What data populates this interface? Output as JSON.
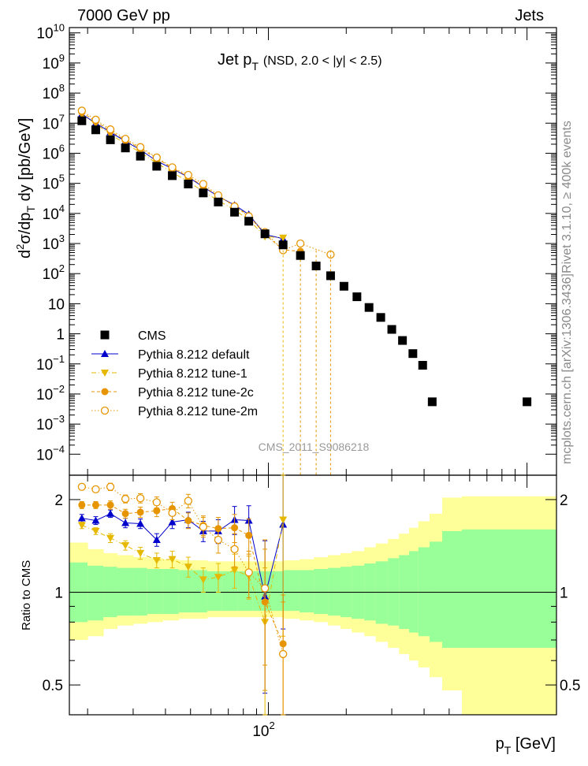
{
  "header": {
    "left": "7000 GeV pp",
    "right": "Jets"
  },
  "side": {
    "rivet": "Rivet 3.1.10, ≥ 400k events",
    "mcplots": "mcplots.cern.ch [arXiv:1306.3436]"
  },
  "chart_data": [
    {
      "type": "scatter",
      "panel": "main",
      "title": "Jet p_T (NSD, 2.0 < |y| < 2.5)",
      "title_parts": {
        "main": "Jet p",
        "sub": "T",
        "tail": "(NSD, 2.0 < |y| < 2.5)"
      },
      "ylabel": "d²σ/dp_T dy [pb/GeV]",
      "xlabel": "p_T [GeV]",
      "watermark": "CMS_2011_S9086218",
      "xscale": "log",
      "yscale": "log",
      "xlim": [
        17,
        1300
      ],
      "ylim": [
        2e-05,
        15000000000
      ],
      "yticks": [
        {
          "v": 10000000000.0,
          "base": "10",
          "exp": "10"
        },
        {
          "v": 1000000000.0,
          "base": "10",
          "exp": "9"
        },
        {
          "v": 100000000.0,
          "base": "10",
          "exp": "8"
        },
        {
          "v": 10000000.0,
          "base": "10",
          "exp": "7"
        },
        {
          "v": 1000000.0,
          "base": "10",
          "exp": "6"
        },
        {
          "v": 100000.0,
          "base": "10",
          "exp": "5"
        },
        {
          "v": 10000.0,
          "base": "10",
          "exp": "4"
        },
        {
          "v": 1000.0,
          "base": "10",
          "exp": "3"
        },
        {
          "v": 100.0,
          "base": "10",
          "exp": "2"
        },
        {
          "v": 10,
          "base": "10",
          "exp": ""
        },
        {
          "v": 1,
          "base": "1",
          "exp": ""
        },
        {
          "v": 0.1,
          "base": "10",
          "exp": "−1"
        },
        {
          "v": 0.01,
          "base": "10",
          "exp": "−2"
        },
        {
          "v": 0.001,
          "base": "10",
          "exp": "−3"
        },
        {
          "v": 0.0001,
          "base": "10",
          "exp": "−4"
        }
      ],
      "legend_position": "bottom-left",
      "series": [
        {
          "name": "CMS",
          "marker": "square",
          "color": "#000000",
          "x": [
            19,
            21.5,
            24.5,
            28,
            32,
            37,
            42.5,
            49,
            56,
            64,
            74,
            84,
            97,
            114,
            133,
            153,
            174,
            196,
            220,
            245,
            272,
            300,
            330,
            362,
            395,
            430,
            468,
            548,
            638,
            737,
            846,
            967
          ],
          "y": [
            12000000,
            6000000,
            2800000,
            1500000,
            800000,
            370000,
            180000,
            95000,
            48000,
            24000,
            11000,
            5500,
            2100,
            900,
            400,
            180,
            85,
            38,
            17,
            7.5,
            3.5,
            1.4,
            0.6,
            0.22,
            0.09,
            0.0055,
            null,
            null,
            null,
            null,
            null,
            null
          ]
        },
        {
          "name": "Pythia 8.212 default",
          "marker": "triangle-up",
          "color": "#0000cc",
          "linestyle": "solid",
          "x": [
            19,
            21.5,
            24.5,
            28,
            32,
            37,
            42.5,
            49,
            56,
            64,
            74,
            84,
            97,
            114
          ],
          "y": [
            20000000,
            10000000,
            5000000,
            2500000,
            1300000,
            550000,
            310000,
            160000,
            76000,
            37000,
            19000,
            9300,
            2000,
            1450
          ]
        },
        {
          "name": "Pythia 8.212 tune-1",
          "marker": "triangle-down",
          "color": "#e6b800",
          "linestyle": "dashdot",
          "x": [
            19,
            21.5,
            24.5,
            28,
            32,
            37,
            42.5,
            49,
            56,
            64,
            74,
            84,
            97,
            114
          ],
          "y": [
            19000000,
            9500000,
            4200000,
            2100000,
            1070000,
            470000,
            230000,
            115000,
            53000,
            27000,
            13000,
            6200,
            1700,
            1550
          ]
        },
        {
          "name": "Pythia 8.212 tune-2c",
          "marker": "circle-filled",
          "color": "#e69500",
          "linestyle": "dashed",
          "x": [
            19,
            21.5,
            24.5,
            28,
            32,
            37,
            42.5,
            49,
            56,
            64,
            74,
            84,
            97,
            114,
            133
          ],
          "y": [
            23000000,
            11500000,
            5400000,
            2700000,
            1450000,
            680000,
            320000,
            170000,
            80000,
            38000,
            18000,
            8400,
            2000,
            620,
            550
          ]
        },
        {
          "name": "Pythia 8.212 tune-2m",
          "marker": "circle-open",
          "color": "#e69500",
          "linestyle": "dotted",
          "x": [
            19,
            21.5,
            24.5,
            28,
            32,
            37,
            42.5,
            49,
            56,
            64,
            74,
            84,
            97,
            114,
            133,
            174
          ],
          "y": [
            26000000,
            13000000,
            6200000,
            3000000,
            1600000,
            720000,
            340000,
            190000,
            95000,
            40000,
            17000,
            8000,
            2400,
            600,
            1000,
            430
          ]
        }
      ]
    },
    {
      "type": "scatter",
      "panel": "ratio",
      "ylabel": "Ratio to CMS",
      "xlabel": "p_T [GeV]",
      "xlabel_parts": {
        "main": "p",
        "sub": "T",
        "tail": " [GeV]"
      },
      "xscale": "log",
      "yscale": "log",
      "xlim": [
        17,
        1300
      ],
      "ylim": [
        0.4,
        2.4
      ],
      "yticks": [
        {
          "v": 0.5,
          "label": "0.5"
        },
        {
          "v": 1,
          "label": "1"
        },
        {
          "v": 2,
          "label": "2"
        }
      ],
      "xticks": [
        {
          "v": 100,
          "base": "10",
          "exp": "2"
        }
      ],
      "bands": {
        "x_edges": [
          17,
          20,
          23,
          26,
          30,
          34,
          39,
          45,
          51,
          58,
          66,
          76,
          87,
          100,
          115,
          132,
          150,
          170,
          190,
          210,
          235,
          260,
          290,
          320,
          350,
          380,
          420,
          470,
          560,
          1300
        ],
        "inner_lo": [
          0.8,
          0.81,
          0.83,
          0.84,
          0.84,
          0.85,
          0.85,
          0.86,
          0.86,
          0.87,
          0.87,
          0.87,
          0.87,
          0.87,
          0.87,
          0.86,
          0.85,
          0.84,
          0.83,
          0.82,
          0.81,
          0.79,
          0.78,
          0.76,
          0.74,
          0.72,
          0.69,
          0.66,
          0.66
        ],
        "inner_hi": [
          1.25,
          1.22,
          1.21,
          1.2,
          1.2,
          1.19,
          1.19,
          1.18,
          1.18,
          1.17,
          1.17,
          1.17,
          1.17,
          1.17,
          1.18,
          1.18,
          1.19,
          1.2,
          1.21,
          1.22,
          1.24,
          1.26,
          1.29,
          1.32,
          1.36,
          1.4,
          1.46,
          1.58,
          1.6
        ],
        "outer_lo": [
          0.7,
          0.72,
          0.76,
          0.78,
          0.79,
          0.8,
          0.81,
          0.82,
          0.82,
          0.83,
          0.83,
          0.83,
          0.83,
          0.83,
          0.82,
          0.81,
          0.8,
          0.78,
          0.76,
          0.74,
          0.72,
          0.69,
          0.66,
          0.63,
          0.6,
          0.57,
          0.53,
          0.48,
          0.4
        ],
        "outer_hi": [
          1.45,
          1.38,
          1.34,
          1.32,
          1.3,
          1.29,
          1.28,
          1.27,
          1.27,
          1.26,
          1.26,
          1.26,
          1.26,
          1.26,
          1.27,
          1.28,
          1.3,
          1.32,
          1.34,
          1.36,
          1.4,
          1.44,
          1.49,
          1.55,
          1.62,
          1.7,
          1.8,
          2.03,
          2.05
        ],
        "inner_color": "#99ff99",
        "outer_color": "#ffff99"
      },
      "series": [
        {
          "name": "Pythia 8.212 default",
          "marker": "triangle-up",
          "color": "#0000cc",
          "linestyle": "solid",
          "x": [
            19,
            21.5,
            24.5,
            28,
            32,
            37,
            42.5,
            49,
            56,
            64,
            74,
            84,
            97,
            114
          ],
          "y": [
            1.74,
            1.71,
            1.8,
            1.68,
            1.67,
            1.48,
            1.69,
            1.72,
            1.58,
            1.58,
            1.72,
            1.71,
            0.97,
            1.66
          ],
          "err": [
            0.05,
            0.05,
            0.05,
            0.06,
            0.06,
            0.07,
            0.08,
            0.1,
            0.12,
            0.14,
            0.18,
            0.2,
            0.5,
            0.9
          ]
        },
        {
          "name": "Pythia 8.212 tune-1",
          "marker": "triangle-down",
          "color": "#e6b800",
          "linestyle": "dashdot",
          "x": [
            19,
            21.5,
            24.5,
            28,
            32,
            37,
            42.5,
            49,
            56,
            64,
            74,
            84,
            97,
            114
          ],
          "y": [
            1.65,
            1.58,
            1.5,
            1.42,
            1.34,
            1.27,
            1.28,
            1.21,
            1.1,
            1.12,
            1.18,
            1.13,
            0.8,
            1.72
          ],
          "err": [
            0.04,
            0.04,
            0.05,
            0.05,
            0.06,
            0.07,
            0.08,
            0.09,
            0.1,
            0.12,
            0.15,
            0.18,
            0.4,
            1.0
          ]
        },
        {
          "name": "Pythia 8.212 tune-2c",
          "marker": "circle-filled",
          "color": "#e69500",
          "linestyle": "dashed",
          "x": [
            19,
            21.5,
            24.5,
            28,
            32,
            37,
            42.5,
            49,
            56,
            64,
            74,
            84,
            97,
            114
          ],
          "y": [
            1.92,
            1.92,
            1.92,
            1.8,
            1.82,
            1.84,
            1.87,
            1.71,
            1.65,
            1.61,
            1.62,
            1.53,
            0.93,
            0.68
          ],
          "err": [
            0.05,
            0.05,
            0.06,
            0.06,
            0.07,
            0.08,
            0.09,
            0.1,
            0.12,
            0.14,
            0.17,
            0.2,
            0.45,
            0.3
          ]
        },
        {
          "name": "Pythia 8.212 tune-2m",
          "marker": "circle-open",
          "color": "#e69500",
          "linestyle": "dotted",
          "x": [
            19,
            21.5,
            24.5,
            28,
            32,
            37,
            42.5,
            49,
            56,
            64,
            74,
            84,
            97,
            114
          ],
          "y": [
            2.2,
            2.16,
            2.2,
            2.01,
            2.02,
            1.96,
            1.81,
            1.98,
            1.63,
            1.48,
            1.38,
            1.16,
            1.03,
            0.63
          ],
          "err": [
            0.05,
            0.05,
            0.06,
            0.06,
            0.07,
            0.08,
            0.09,
            0.1,
            0.12,
            0.14,
            0.17,
            0.2,
            0.45,
            0.3
          ]
        }
      ]
    }
  ]
}
